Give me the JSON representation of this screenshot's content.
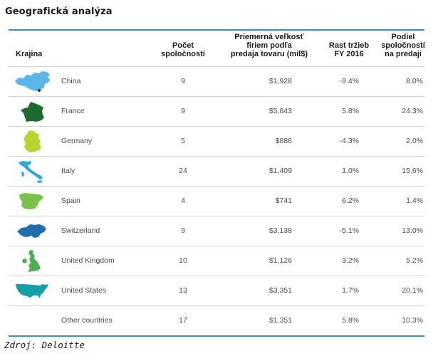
{
  "title": "Geografická analýza",
  "header": {
    "country": "Krajina",
    "count": [
      "Počet",
      "spoločností"
    ],
    "revenue": [
      "Priemerná veľkosť",
      "firiem podľa",
      "predaja tovaru (mil$)"
    ],
    "growth": [
      "Rast tržieb",
      "FY 2016"
    ],
    "share": [
      "Podiel",
      "spoločností",
      "na predaji"
    ]
  },
  "rows": [
    {
      "icon": "china-map-icon",
      "color": "#5bb6e8",
      "country": "China",
      "count": "9",
      "revenue": "$1,928",
      "growth": "-9.4%",
      "share": "8.0%"
    },
    {
      "icon": "france-map-icon",
      "color": "#1e6b2e",
      "country": "France",
      "count": "9",
      "revenue": "$5,843",
      "growth": "5.8%",
      "share": "24.3%"
    },
    {
      "icon": "germany-map-icon",
      "color": "#b8d431",
      "country": "Germany",
      "count": "5",
      "revenue": "$886",
      "growth": "-4.3%",
      "share": "2.0%"
    },
    {
      "icon": "italy-map-icon",
      "color": "#29a9d6",
      "country": "Italy",
      "count": "24",
      "revenue": "$1,409",
      "growth": "1.0%",
      "share": "15.6%"
    },
    {
      "icon": "spain-map-icon",
      "color": "#7cc24a",
      "country": "Spain",
      "count": "4",
      "revenue": "$741",
      "growth": "6.2%",
      "share": "1.4%"
    },
    {
      "icon": "switzerland-map-icon",
      "color": "#1d6fb0",
      "country": "Switzerland",
      "count": "9",
      "revenue": "$3,138",
      "growth": "-5.1%",
      "share": "13.0%"
    },
    {
      "icon": "united-kingdom-map-icon",
      "color": "#4caf50",
      "country": "United Kingdom",
      "count": "10",
      "revenue": "$1,126",
      "growth": "3.2%",
      "share": "5.2%"
    },
    {
      "icon": "united-states-map-icon",
      "color": "#14a0a8",
      "country": "United States",
      "count": "13",
      "revenue": "$3,351",
      "growth": "1.7%",
      "share": "20.1%"
    },
    {
      "icon": "",
      "color": "",
      "country": "Other countries",
      "count": "17",
      "revenue": "$1,351",
      "growth": "5.8%",
      "share": "10.3%"
    }
  ],
  "source": "Zdroj: Deloitte"
}
